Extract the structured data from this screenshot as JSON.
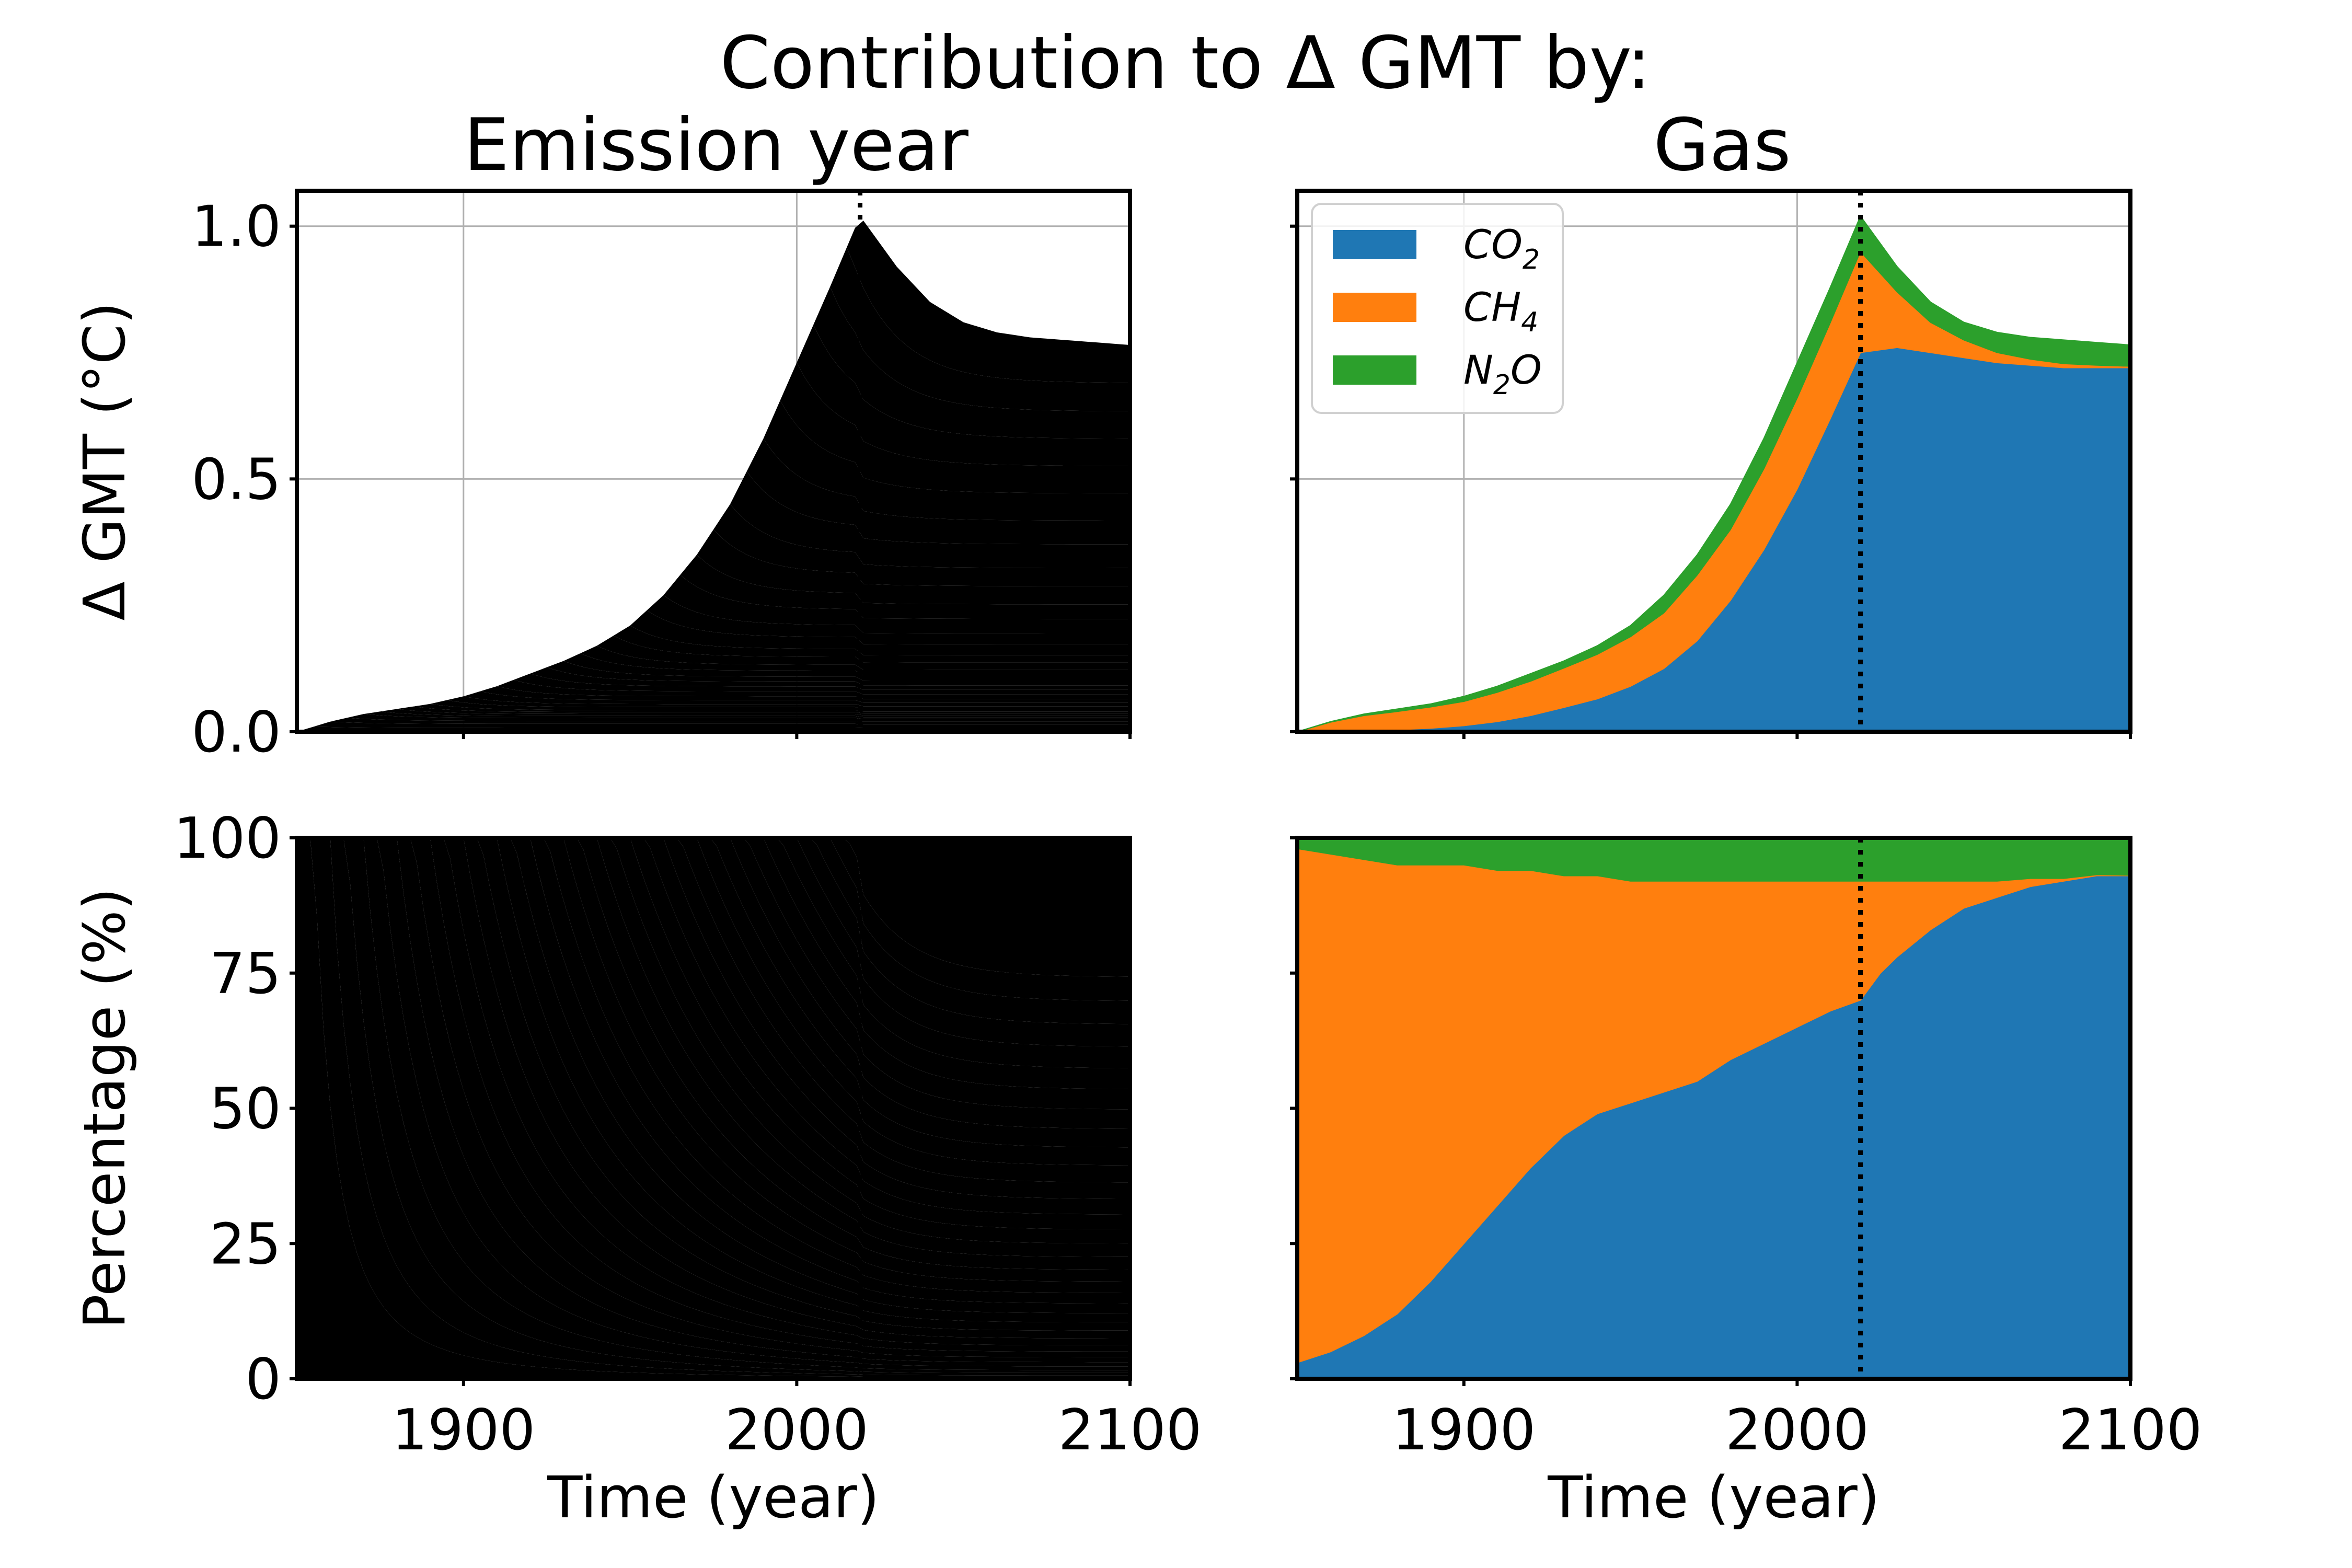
{
  "figure": {
    "suptitle": "Contribution to Δ GMT by:",
    "column_titles": [
      "Emission year",
      "Gas"
    ]
  },
  "chart_data": [
    {
      "id": "gmt_by_emission_year",
      "type": "area",
      "stacked": true,
      "title": "Emission year",
      "xlabel": "",
      "ylabel": "Δ GMT (°C)",
      "xlim": [
        1850,
        2100
      ],
      "ylim": [
        0,
        1.07
      ],
      "xticks": [
        1900,
        2000,
        2100
      ],
      "xticklabels_visible": false,
      "yticks": [
        0,
        0.5,
        1.0
      ],
      "yticklabels": [
        "0.0",
        "0.5",
        "1.0"
      ],
      "grid": true,
      "vline_x": 2019,
      "emission_years_start": 1850,
      "emission_years_end": 2019,
      "total_curve": {
        "x": [
          1850,
          1860,
          1870,
          1880,
          1890,
          1900,
          1910,
          1920,
          1930,
          1940,
          1950,
          1960,
          1970,
          1980,
          1990,
          2000,
          2010,
          2019,
          2030,
          2040,
          2050,
          2060,
          2070,
          2080,
          2090,
          2100
        ],
        "y": [
          0.0,
          0.02,
          0.035,
          0.045,
          0.055,
          0.07,
          0.09,
          0.115,
          0.14,
          0.17,
          0.21,
          0.27,
          0.35,
          0.45,
          0.58,
          0.73,
          0.88,
          1.02,
          0.92,
          0.85,
          0.81,
          0.79,
          0.78,
          0.775,
          0.77,
          0.765
        ]
      },
      "band_colors": [
        "#9d1f24",
        "#e8d4d2",
        "#b4583d",
        "#efdfd7",
        "#dca242",
        "#f8efd9"
      ]
    },
    {
      "id": "gmt_by_gas",
      "type": "area",
      "stacked": true,
      "title": "Gas",
      "xlabel": "",
      "ylabel": "",
      "xlim": [
        1850,
        2100
      ],
      "ylim": [
        0,
        1.07
      ],
      "xticks": [
        1900,
        2000,
        2100
      ],
      "xticklabels_visible": false,
      "yticks": [
        0,
        0.5,
        1.0
      ],
      "yticklabels_visible": false,
      "grid": true,
      "vline_x": 2019,
      "legend": "top-left",
      "x": [
        1850,
        1860,
        1870,
        1880,
        1890,
        1900,
        1910,
        1920,
        1930,
        1940,
        1950,
        1960,
        1970,
        1980,
        1990,
        2000,
        2010,
        2019,
        2030,
        2040,
        2050,
        2060,
        2070,
        2080,
        2090,
        2100
      ],
      "series": [
        {
          "name": "CO2",
          "label_main": "CO",
          "label_sub": "2",
          "color": "#1f77b4",
          "values": [
            0.0,
            0.001,
            0.002,
            0.004,
            0.007,
            0.012,
            0.02,
            0.032,
            0.048,
            0.065,
            0.09,
            0.125,
            0.18,
            0.26,
            0.36,
            0.48,
            0.62,
            0.75,
            0.76,
            0.75,
            0.74,
            0.73,
            0.725,
            0.72,
            0.72,
            0.72
          ]
        },
        {
          "name": "CH4",
          "label_main": "CH",
          "label_sub": "4",
          "color": "#ff7f0e",
          "values": [
            0.0,
            0.018,
            0.03,
            0.036,
            0.042,
            0.048,
            0.058,
            0.068,
            0.078,
            0.088,
            0.098,
            0.11,
            0.13,
            0.14,
            0.16,
            0.18,
            0.19,
            0.2,
            0.11,
            0.06,
            0.035,
            0.02,
            0.012,
            0.008,
            0.005,
            0.003
          ]
        },
        {
          "name": "N2O",
          "label_main": "N",
          "label_sub": "2",
          "label_tail": "O",
          "color": "#2ca02c",
          "values": [
            0.0,
            0.001,
            0.003,
            0.005,
            0.006,
            0.01,
            0.012,
            0.015,
            0.014,
            0.017,
            0.022,
            0.035,
            0.04,
            0.05,
            0.06,
            0.07,
            0.07,
            0.07,
            0.05,
            0.04,
            0.035,
            0.04,
            0.043,
            0.047,
            0.045,
            0.042
          ]
        }
      ]
    },
    {
      "id": "percentage_by_emission_year",
      "type": "area",
      "stacked": true,
      "title": "",
      "xlabel": "Time (year)",
      "ylabel": "Percentage (%)",
      "xlim": [
        1850,
        2100
      ],
      "ylim": [
        0,
        100
      ],
      "xticks": [
        1900,
        2000,
        2100
      ],
      "xticklabels": [
        "1900",
        "2000",
        "2100"
      ],
      "yticks": [
        0,
        25,
        50,
        75,
        100
      ],
      "yticklabels": [
        "0",
        "25",
        "50",
        "75",
        "100"
      ],
      "grid": true,
      "vline_x": 2019
    },
    {
      "id": "percentage_by_gas",
      "type": "area",
      "stacked": true,
      "title": "",
      "xlabel": "Time (year)",
      "ylabel": "",
      "xlim": [
        1850,
        2100
      ],
      "ylim": [
        0,
        100
      ],
      "xticks": [
        1900,
        2000,
        2100
      ],
      "xticklabels": [
        "1900",
        "2000",
        "2100"
      ],
      "yticks": [
        0,
        25,
        50,
        75,
        100
      ],
      "yticklabels_visible": false,
      "grid": true,
      "vline_x": 2019,
      "x": [
        1850,
        1860,
        1870,
        1880,
        1890,
        1900,
        1910,
        1920,
        1930,
        1940,
        1950,
        1960,
        1970,
        1980,
        1990,
        2000,
        2010,
        2019,
        2025,
        2030,
        2040,
        2050,
        2060,
        2070,
        2080,
        2090,
        2100
      ],
      "series": [
        {
          "name": "CO2",
          "color": "#1f77b4",
          "values": [
            3,
            5,
            8,
            12,
            18,
            25,
            32,
            39,
            45,
            49,
            51,
            53,
            55,
            59,
            62,
            65,
            68,
            70,
            75,
            78,
            83,
            87,
            89,
            91,
            92,
            93,
            93
          ]
        },
        {
          "name": "CH4",
          "color": "#ff7f0e",
          "values": [
            95,
            92,
            88,
            83,
            77,
            70,
            62,
            55,
            48,
            44,
            41,
            39,
            37,
            33,
            30,
            27,
            24,
            22,
            17,
            14,
            9,
            5,
            3,
            1.5,
            0.5,
            0.2,
            0.1
          ]
        },
        {
          "name": "N2O",
          "color": "#2ca02c",
          "values": [
            2,
            3,
            4,
            5,
            5,
            5,
            6,
            6,
            7,
            7,
            8,
            8,
            8,
            8,
            8,
            8,
            8,
            8,
            8,
            8,
            8,
            8,
            8,
            7.5,
            7.5,
            6.8,
            6.9
          ]
        }
      ]
    }
  ]
}
